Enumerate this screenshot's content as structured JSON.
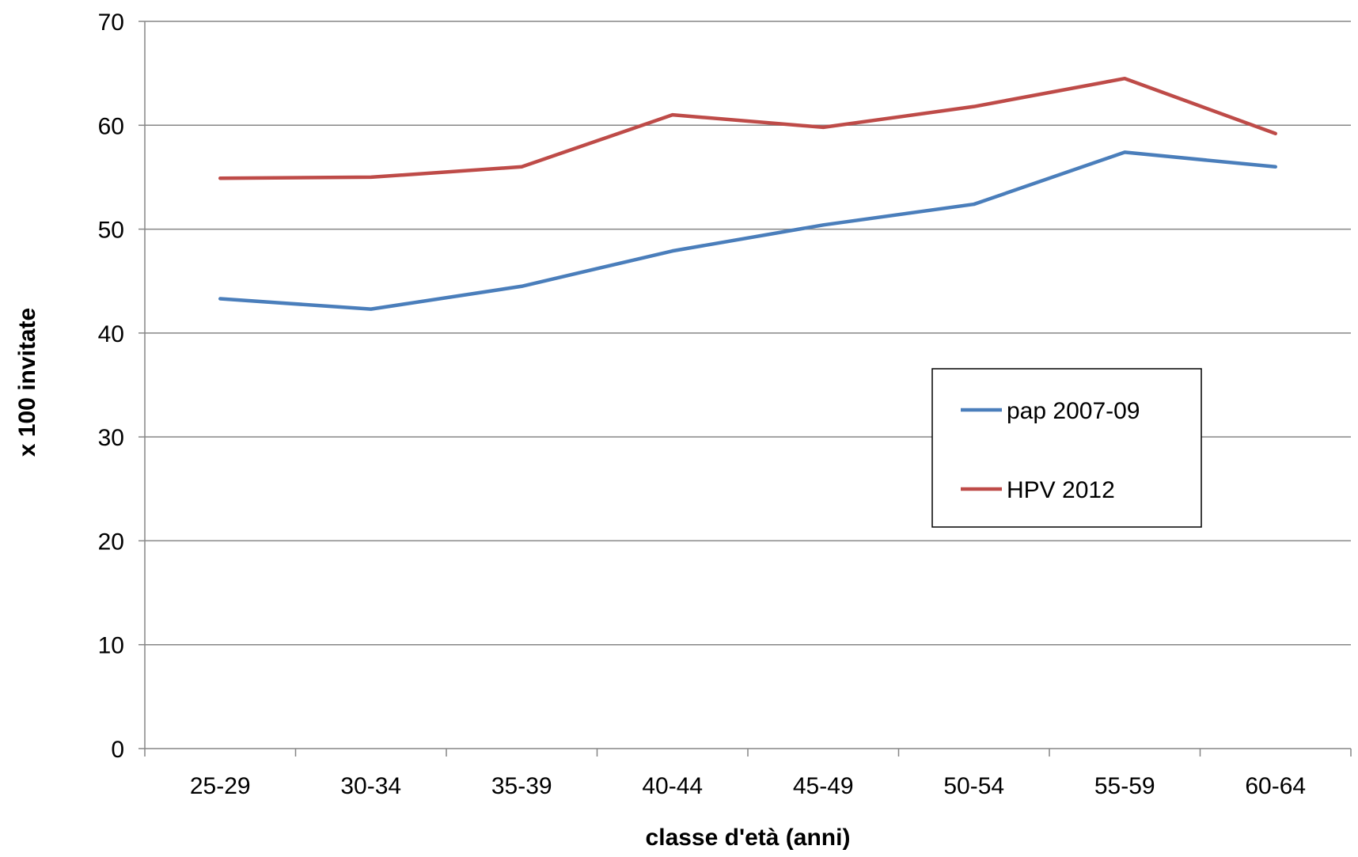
{
  "chart_data": {
    "type": "line",
    "title": "",
    "xlabel": "classe d'età (anni)",
    "ylabel": "x 100 invitate",
    "categories": [
      "25-29",
      "30-34",
      "35-39",
      "40-44",
      "45-49",
      "50-54",
      "55-59",
      "60-64"
    ],
    "ylim": [
      0,
      70
    ],
    "yticks": [
      0,
      10,
      20,
      30,
      40,
      50,
      60,
      70
    ],
    "grid": true,
    "legend_position": "right",
    "series": [
      {
        "name": "pap 2007-09",
        "color": "#4a7ebb",
        "values": [
          43.3,
          42.3,
          44.5,
          47.9,
          50.4,
          52.4,
          57.4,
          56.0
        ]
      },
      {
        "name": "HPV 2012",
        "color": "#be4b48",
        "values": [
          54.9,
          55.0,
          56.0,
          61.0,
          59.8,
          61.8,
          64.5,
          59.2
        ]
      }
    ]
  }
}
